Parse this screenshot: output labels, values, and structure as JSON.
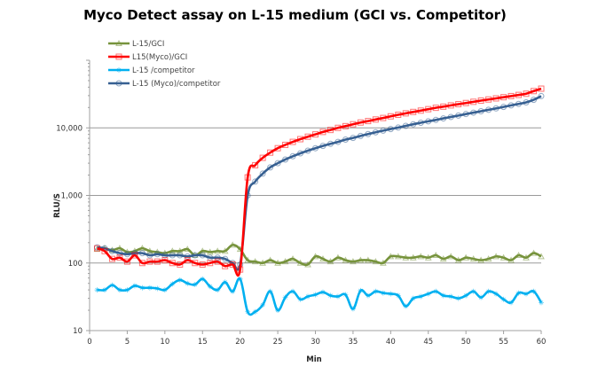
{
  "chart_data": {
    "type": "line",
    "title": "Myco Detect assay on L-15 medium (GCI vs. Competitor)",
    "xlabel": "Min",
    "ylabel": "RLU/S",
    "xlim": [
      0,
      60
    ],
    "ylim": [
      10,
      100000
    ],
    "yscale": "log",
    "x_ticks": [
      "0",
      "5",
      "10",
      "15",
      "20",
      "25",
      "30",
      "35",
      "40",
      "45",
      "50",
      "55",
      "60"
    ],
    "y_ticks": [
      "10",
      "100",
      "1,000",
      "10,000"
    ],
    "grid": "horizontal major",
    "legend_position": "top-left",
    "x": [
      1,
      2,
      3,
      4,
      5,
      6,
      7,
      8,
      9,
      10,
      11,
      12,
      13,
      14,
      15,
      16,
      17,
      18,
      19,
      20,
      21,
      22,
      23,
      24,
      25,
      26,
      27,
      28,
      29,
      30,
      31,
      32,
      33,
      34,
      35,
      36,
      37,
      38,
      39,
      40,
      41,
      42,
      43,
      44,
      45,
      46,
      47,
      48,
      49,
      50,
      51,
      52,
      53,
      54,
      55,
      56,
      57,
      58,
      59,
      60
    ],
    "series": [
      {
        "name": "L-15/GCI",
        "color": "#77933C",
        "marker": "triangle",
        "values": [
          160,
          165,
          155,
          165,
          145,
          150,
          165,
          150,
          145,
          140,
          150,
          150,
          160,
          130,
          150,
          145,
          150,
          150,
          185,
          160,
          110,
          105,
          100,
          110,
          100,
          105,
          115,
          100,
          95,
          125,
          115,
          105,
          120,
          110,
          105,
          110,
          110,
          105,
          100,
          125,
          125,
          120,
          120,
          125,
          120,
          130,
          115,
          125,
          110,
          120,
          115,
          110,
          115,
          125,
          120,
          110,
          130,
          120,
          140,
          125
        ]
      },
      {
        "name": "L15(Myco)/GCI",
        "color": "#FF0000",
        "marker": "square",
        "values": [
          165,
          150,
          115,
          120,
          105,
          130,
          100,
          105,
          105,
          110,
          100,
          95,
          110,
          100,
          95,
          100,
          105,
          90,
          95,
          80,
          1850,
          2800,
          3600,
          4300,
          5000,
          5600,
          6200,
          6800,
          7400,
          8000,
          8700,
          9300,
          10000,
          10600,
          11300,
          12000,
          12600,
          13300,
          14000,
          14800,
          15600,
          16400,
          17200,
          18000,
          18900,
          19800,
          20600,
          21500,
          22400,
          23300,
          24300,
          25300,
          26300,
          27300,
          28400,
          29500,
          30700,
          32000,
          35000,
          38000
        ]
      },
      {
        "name": "L-15 /competitor",
        "color": "#00B0F0",
        "marker": "star",
        "values": [
          40,
          40,
          47,
          40,
          40,
          46,
          43,
          43,
          42,
          40,
          49,
          56,
          50,
          48,
          58,
          45,
          40,
          52,
          38,
          58,
          19,
          19,
          24,
          38,
          20,
          31,
          38,
          29,
          32,
          34,
          37,
          33,
          32,
          34,
          21,
          39,
          33,
          38,
          36,
          35,
          33,
          23,
          30,
          32,
          35,
          38,
          33,
          32,
          30,
          33,
          38,
          31,
          38,
          35,
          29,
          26,
          36,
          35,
          38,
          26
        ]
      },
      {
        "name": "L-15 (Myco)/competitor",
        "color": "#376092",
        "marker": "circle",
        "values": [
          170,
          165,
          150,
          140,
          135,
          140,
          140,
          130,
          135,
          130,
          130,
          130,
          125,
          130,
          130,
          120,
          120,
          115,
          100,
          95,
          1000,
          1600,
          2100,
          2600,
          3000,
          3400,
          3800,
          4200,
          4600,
          5000,
          5400,
          5800,
          6200,
          6700,
          7100,
          7600,
          8100,
          8600,
          9100,
          9600,
          10100,
          10700,
          11300,
          11900,
          12500,
          13100,
          13800,
          14500,
          15200,
          16000,
          16800,
          17600,
          18500,
          19400,
          20400,
          21500,
          22600,
          23800,
          26000,
          29500
        ]
      }
    ]
  }
}
